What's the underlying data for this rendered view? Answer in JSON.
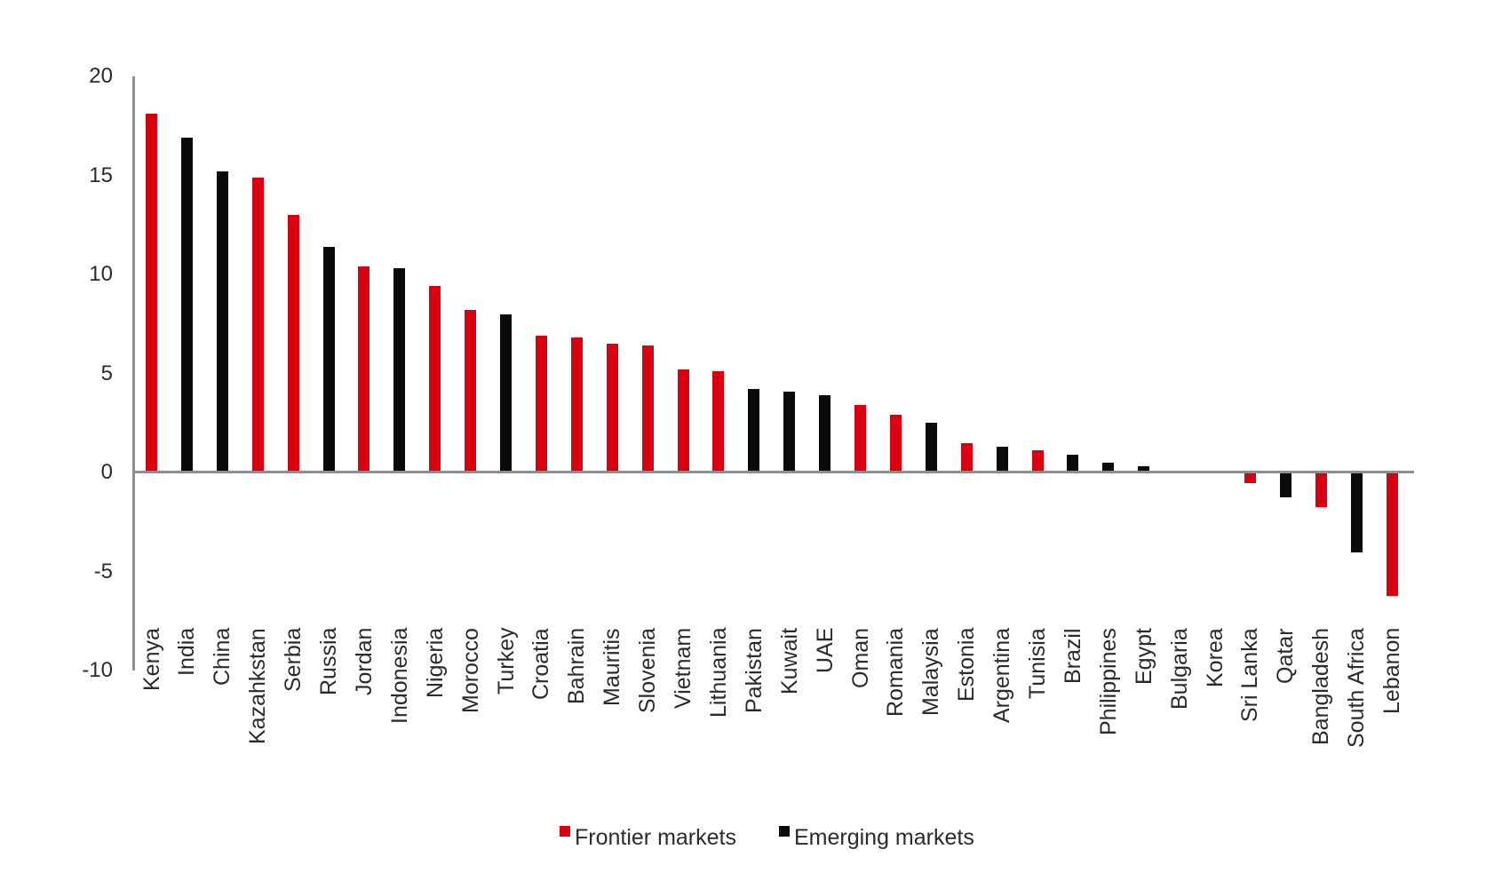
{
  "style": {
    "background": "#FFFFFF",
    "axis_color": "#8E8E8E",
    "text_color": "#2B2B2B"
  },
  "chart_data": {
    "type": "bar",
    "title": "",
    "xlabel": "",
    "ylabel": "",
    "grid": false,
    "legend_position": "bottom",
    "ylim": [
      -10,
      20
    ],
    "yticks": [
      {
        "label": "20",
        "value": 20
      },
      {
        "label": "15",
        "value": 15
      },
      {
        "label": "10",
        "value": 10
      },
      {
        "label": "5",
        "value": 5
      },
      {
        "label": "0",
        "value": 0
      },
      {
        "label": "-5",
        "value": -5
      },
      {
        "label": "-10",
        "value": -10
      }
    ],
    "categories": [
      "Kenya",
      "India",
      "China",
      "Kazahkstan",
      "Serbia",
      "Russia",
      "Jordan",
      "Indonesia",
      "Nigeria",
      "Morocco",
      "Turkey",
      "Croatia",
      "Bahrain",
      "Mauritis",
      "Slovenia",
      "Vietnam",
      "Lithuania",
      "Pakistan",
      "Kuwait",
      "UAE",
      "Oman",
      "Romania",
      "Malaysia",
      "Estonia",
      "Argentina",
      "Tunisia",
      "Brazil",
      "Philippines",
      "Egypt",
      "Bulgaria",
      "Korea",
      "Sri Lanka",
      "Qatar",
      "Bangladesh",
      "South Africa",
      "Lebanon"
    ],
    "values": [
      18.1,
      16.9,
      15.2,
      14.9,
      13.0,
      11.4,
      10.4,
      10.3,
      9.4,
      8.2,
      8.0,
      6.9,
      6.8,
      6.5,
      6.4,
      5.2,
      5.1,
      4.2,
      4.1,
      3.9,
      3.4,
      2.9,
      2.5,
      1.5,
      1.3,
      1.1,
      0.9,
      0.5,
      0.3,
      0.0,
      0.0,
      -0.5,
      -1.2,
      -1.7,
      -4.0,
      -6.2
    ],
    "groups": [
      "frontier",
      "emerging",
      "emerging",
      "frontier",
      "frontier",
      "emerging",
      "frontier",
      "emerging",
      "frontier",
      "frontier",
      "emerging",
      "frontier",
      "frontier",
      "frontier",
      "frontier",
      "frontier",
      "frontier",
      "emerging",
      "emerging",
      "emerging",
      "frontier",
      "frontier",
      "emerging",
      "frontier",
      "emerging",
      "frontier",
      "emerging",
      "emerging",
      "emerging",
      "frontier",
      "emerging",
      "frontier",
      "emerging",
      "frontier",
      "emerging",
      "frontier"
    ],
    "series_colors": {
      "frontier": "#D9000F",
      "emerging": "#0A0A0A"
    },
    "legend": [
      {
        "label": "Frontier markets",
        "group": "frontier"
      },
      {
        "label": "Emerging markets",
        "group": "emerging"
      }
    ]
  }
}
